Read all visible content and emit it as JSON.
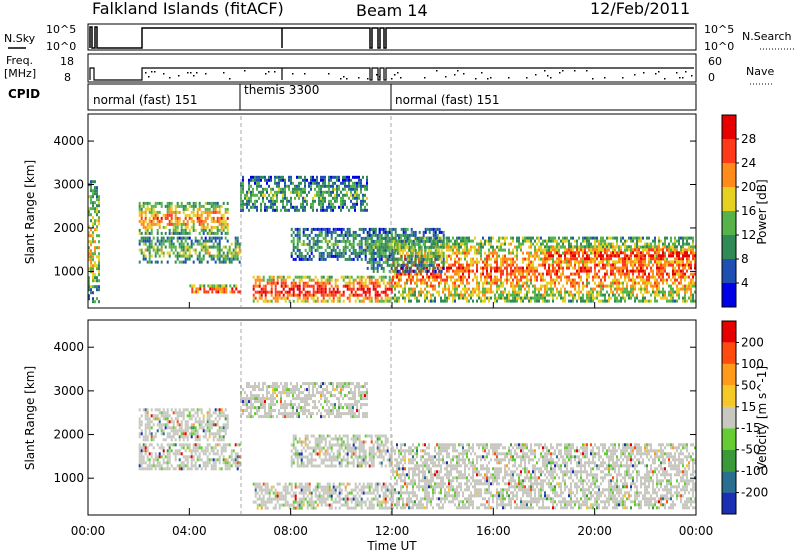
{
  "header": {
    "station": "Falkland Islands (fitACF)",
    "beam": "Beam 14",
    "date": "12/Feb/2011"
  },
  "status_panels": {
    "nsky_label": "N.Sky",
    "nsky_ticks": [
      "10^5",
      "10^0"
    ],
    "nsearch_label": "N.Search",
    "nsearch_ticks": [
      "10^5",
      "10^0"
    ],
    "freq_label_1": "Freq.",
    "freq_label_2": "[MHz]",
    "freq_ticks": [
      "18",
      "8"
    ],
    "nave_label": "Nave",
    "nave_ticks": [
      "60",
      "0"
    ],
    "cpid_label": "CPID",
    "cpid_segments": [
      {
        "label": "normal (fast) 151",
        "start_ut": 0.0
      },
      {
        "label": "themis 3300",
        "start_ut": 6.0
      },
      {
        "label": "normal (fast) 151",
        "start_ut": 12.0
      }
    ]
  },
  "chart_data": [
    {
      "type": "heatmap",
      "name": "power-panel",
      "xlabel": "",
      "ylabel": "Slant Range [km]",
      "xlim": [
        0,
        24
      ],
      "ylim": [
        180,
        4600
      ],
      "yticks": [
        1000,
        2000,
        3000,
        4000
      ],
      "colorbar": {
        "label": "Power [dB]",
        "ticks": [
          "4",
          "8",
          "12",
          "16",
          "20",
          "24",
          "28"
        ],
        "colors": [
          "#0000e6",
          "#1f4fb3",
          "#2f8a55",
          "#55b34a",
          "#e6d020",
          "#ff8c1a",
          "#ff3a1a",
          "#e60000"
        ]
      },
      "bands": [
        {
          "t0": 0.0,
          "t1": 0.4,
          "r0": 300,
          "r1": 3100,
          "level": 0.55
        },
        {
          "t0": 2.0,
          "t1": 5.5,
          "r0": 1900,
          "r1": 2600,
          "level": 0.65
        },
        {
          "t0": 2.0,
          "t1": 6.0,
          "r0": 1200,
          "r1": 1800,
          "level": 0.45
        },
        {
          "t0": 4.0,
          "t1": 6.0,
          "r0": 500,
          "r1": 700,
          "level": 0.8
        },
        {
          "t0": 6.0,
          "t1": 11.0,
          "r0": 2400,
          "r1": 3200,
          "level": 0.35
        },
        {
          "t0": 6.5,
          "t1": 12.0,
          "r0": 300,
          "r1": 900,
          "level": 0.85
        },
        {
          "t0": 12.0,
          "t1": 24.0,
          "r0": 300,
          "r1": 1800,
          "level": 0.7
        },
        {
          "t0": 18.0,
          "t1": 24.0,
          "r0": 1200,
          "r1": 1600,
          "level": 0.85
        },
        {
          "t0": 11.0,
          "t1": 14.0,
          "r0": 1000,
          "r1": 2000,
          "level": 0.4
        },
        {
          "t0": 8.0,
          "t1": 12.0,
          "r0": 1300,
          "r1": 2000,
          "level": 0.35
        }
      ]
    },
    {
      "type": "heatmap",
      "name": "velocity-panel",
      "xlabel": "Time UT",
      "ylabel": "Slant Range [km]",
      "xlim": [
        0,
        24
      ],
      "ylim": [
        180,
        4600
      ],
      "yticks": [
        1000,
        2000,
        3000,
        4000
      ],
      "xticks": [
        "00:00",
        "04:00",
        "08:00",
        "12:00",
        "16:00",
        "20:00",
        "00:00"
      ],
      "xtick_values": [
        0,
        4,
        8,
        12,
        16,
        20,
        24
      ],
      "colorbar": {
        "label": "Velocity [m s^-1]",
        "ticks": [
          "200",
          "100",
          "50",
          "15",
          "-15",
          "-50",
          "-100",
          "-200"
        ],
        "colors": [
          "#1a2fb3",
          "#2a6e90",
          "#3a9a3a",
          "#66cc33",
          "#c8c8c0",
          "#f5c828",
          "#ff9a1a",
          "#ff4a10",
          "#e60000"
        ]
      },
      "bands": [
        {
          "t0": 2.0,
          "t1": 5.5,
          "r0": 1900,
          "r1": 2600,
          "level": 0.5
        },
        {
          "t0": 2.0,
          "t1": 6.0,
          "r0": 1200,
          "r1": 1800,
          "level": 0.5
        },
        {
          "t0": 6.0,
          "t1": 11.0,
          "r0": 2400,
          "r1": 3200,
          "level": 0.5
        },
        {
          "t0": 6.5,
          "t1": 12.0,
          "r0": 300,
          "r1": 900,
          "level": 0.5
        },
        {
          "t0": 12.0,
          "t1": 24.0,
          "r0": 300,
          "r1": 1800,
          "level": 0.5
        },
        {
          "t0": 8.0,
          "t1": 12.0,
          "r0": 1300,
          "r1": 2000,
          "level": 0.5
        }
      ]
    }
  ]
}
